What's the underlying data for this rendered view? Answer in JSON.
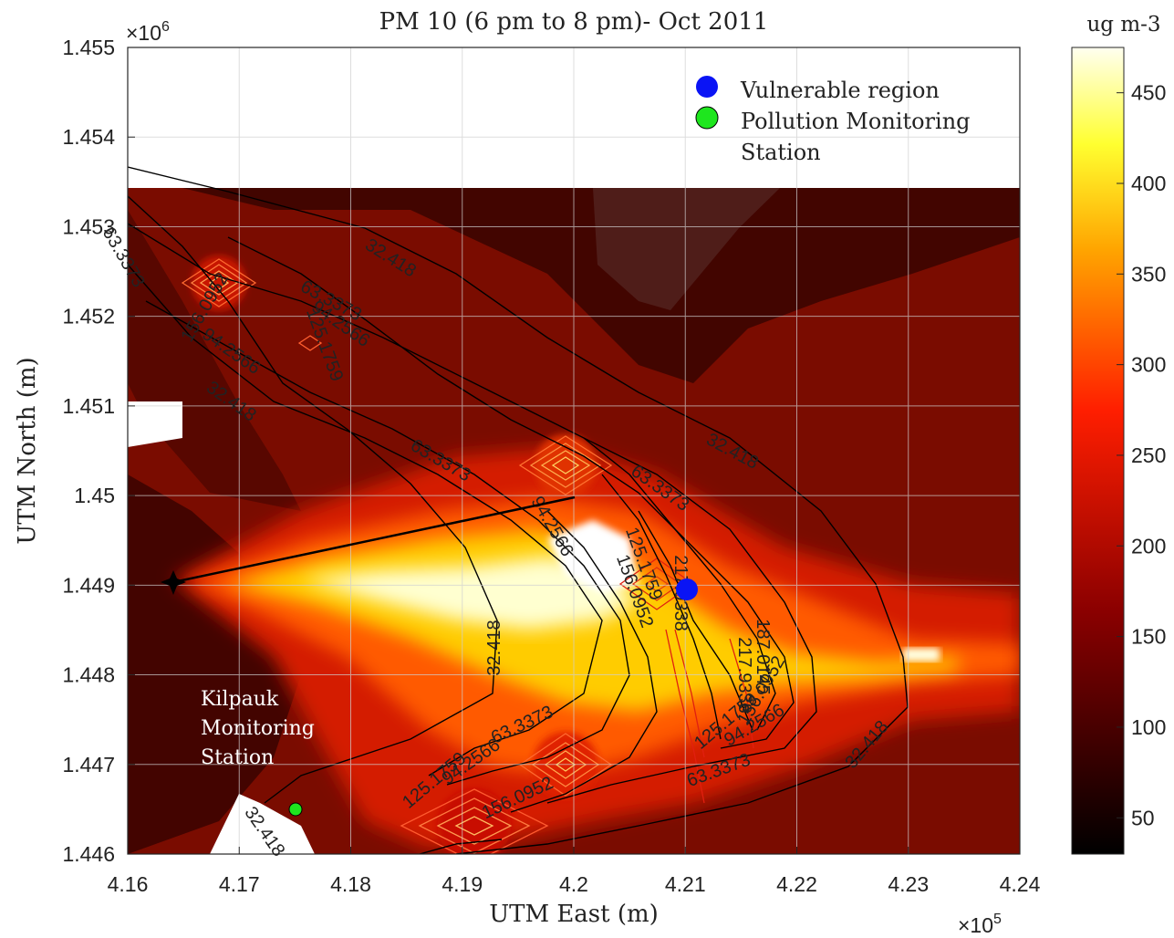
{
  "chart_data": {
    "type": "heatmap",
    "title": "PM 10 (6 pm to 8 pm)- Oct 2011",
    "xlabel": "UTM East (m)",
    "ylabel": "UTM North (m)",
    "x_exponent": "×10",
    "x_exponent_power": "5",
    "y_exponent": "×10",
    "y_exponent_power": "6",
    "xlim": [
      416000,
      424000
    ],
    "ylim": [
      1446000,
      1455000
    ],
    "x_ticks": [
      {
        "value": 416000,
        "label": "4.16"
      },
      {
        "value": 417000,
        "label": "4.17"
      },
      {
        "value": 418000,
        "label": "4.18"
      },
      {
        "value": 419000,
        "label": "4.19"
      },
      {
        "value": 420000,
        "label": "4.2"
      },
      {
        "value": 421000,
        "label": "4.21"
      },
      {
        "value": 422000,
        "label": "4.22"
      },
      {
        "value": 423000,
        "label": "4.23"
      },
      {
        "value": 424000,
        "label": "4.24"
      }
    ],
    "y_ticks": [
      {
        "value": 1446000,
        "label": "1.446"
      },
      {
        "value": 1447000,
        "label": "1.447"
      },
      {
        "value": 1448000,
        "label": "1.448"
      },
      {
        "value": 1449000,
        "label": "1.449"
      },
      {
        "value": 1450000,
        "label": "1.45"
      },
      {
        "value": 1451000,
        "label": "1.451"
      },
      {
        "value": 1452000,
        "label": "1.452"
      },
      {
        "value": 1453000,
        "label": "1.453"
      },
      {
        "value": 1454000,
        "label": "1.454"
      },
      {
        "value": 1455000,
        "label": "1.455"
      }
    ],
    "grid": true,
    "colorbar": {
      "label": "ug m-3",
      "colormap": "hot",
      "range": [
        30,
        475
      ],
      "ticks": [
        {
          "value": 50,
          "label": "50"
        },
        {
          "value": 100,
          "label": "100"
        },
        {
          "value": 150,
          "label": "150"
        },
        {
          "value": 200,
          "label": "200"
        },
        {
          "value": 250,
          "label": "250"
        },
        {
          "value": 300,
          "label": "300"
        },
        {
          "value": 350,
          "label": "350"
        },
        {
          "value": 400,
          "label": "400"
        },
        {
          "value": 450,
          "label": "450"
        }
      ]
    },
    "legend": {
      "placement": "top-right",
      "entries": [
        {
          "label": "Vulnerable region",
          "color": "#0a14f5"
        },
        {
          "label": "Pollution Monitoring Station",
          "color": "#1ee61e"
        }
      ]
    },
    "contour_levels": [
      32.418,
      63.3373,
      94.2566,
      125.1759,
      156.0952,
      187.0145,
      217.9338
    ],
    "contour_labels": [
      "32.418",
      "32.418",
      "32.418",
      "32.418",
      "32.418",
      "32.418",
      "63.3373",
      "63.3373",
      "63.3373",
      "63.3373",
      "63.3373",
      "63.3373",
      "94.2566",
      "94.2566",
      "94.2566",
      "94.2566",
      "94.2566",
      "125.1759",
      "125.1759",
      "125.1759",
      "125.1759",
      "156.0952",
      "156.0952",
      "156.0952",
      "156.0952",
      "187.0145",
      "217.9338",
      "217.9338"
    ],
    "points": [
      {
        "name": "Vulnerable region",
        "x": 421000,
        "y": 1448950,
        "color": "#0a14f5"
      },
      {
        "name": "Pollution Monitoring Station",
        "x": 417550,
        "y": 1446500,
        "color": "#1ee61e"
      },
      {
        "name": "source",
        "x": 416450,
        "y": 1449050,
        "color": "#000000"
      }
    ],
    "annotations": [
      {
        "text": "Kilpauk Monitoring Station",
        "lines": [
          "Kilpauk",
          "Monitoring",
          "Station"
        ],
        "x": 417450,
        "y": 1447600
      }
    ]
  }
}
